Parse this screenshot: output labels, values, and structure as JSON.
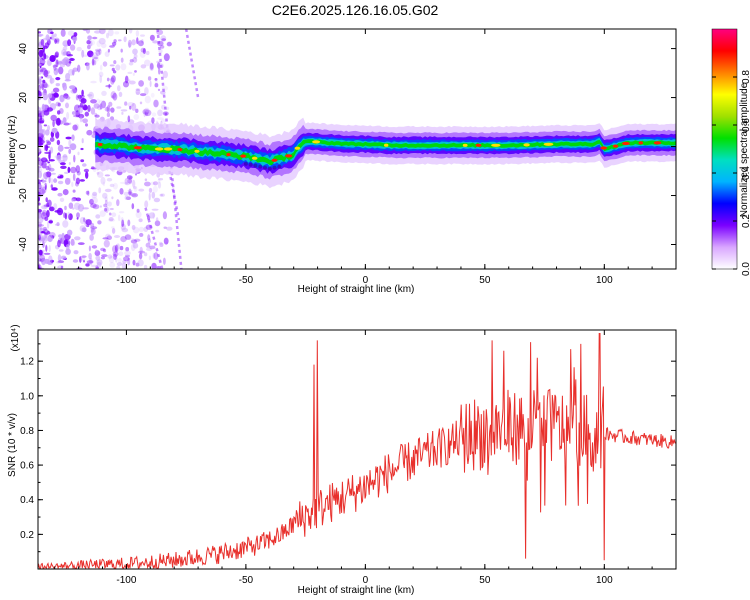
{
  "title": "C2E6.2025.126.16.05.G02",
  "chart_data": [
    {
      "type": "heatmap",
      "xlabel": "Height of straight line (km)",
      "ylabel": "Frequency (Hz)",
      "xlim": [
        -137,
        130
      ],
      "ylim": [
        -50,
        48
      ],
      "xticks": [
        -100,
        -50,
        0,
        50,
        100
      ],
      "yticks": [
        -40,
        -20,
        0,
        20,
        40
      ],
      "xtick_labels": [
        "-100",
        "-50",
        "0",
        "50",
        "100"
      ],
      "ytick_labels": [
        "-40",
        "-20",
        "0",
        "20",
        "40"
      ],
      "colorbar": {
        "label": "Normalized spectral amplitude",
        "range": [
          0,
          1
        ],
        "ticks": [
          0.0,
          0.2,
          0.4,
          0.6,
          0.8
        ],
        "tick_labels": [
          "0.0",
          "0.2",
          "0.4",
          "0.6",
          "0.8"
        ],
        "colors": [
          "#ffffff",
          "#d9a6ff",
          "#7a00ff",
          "#0000ff",
          "#00b4ff",
          "#00e0c0",
          "#00e000",
          "#a0e000",
          "#ffff00",
          "#ff8000",
          "#ff0000",
          "#ff0080"
        ]
      },
      "ridge": {
        "x": [
          -113,
          -100,
          -90,
          -80,
          -70,
          -60,
          -50,
          -45,
          -40,
          -35,
          -30,
          -28,
          -25,
          -22,
          -15,
          -5,
          0,
          10,
          20,
          40,
          60,
          80,
          95,
          98,
          100,
          110,
          130
        ],
        "freq": [
          1,
          0,
          -1,
          -1,
          -2,
          -3,
          -4,
          -5,
          -6,
          -5,
          -3,
          0,
          2,
          2,
          1.5,
          1,
          1,
          0.5,
          0.5,
          0.5,
          0.5,
          1,
          1,
          2,
          -1,
          1.5,
          1.5
        ]
      }
    },
    {
      "type": "line",
      "xlabel": "Height of straight line (km)",
      "ylabel": "SNR (10 * v/v)",
      "scale_label": "(x10⁴)",
      "xlim": [
        -137,
        130
      ],
      "ylim": [
        0,
        1.38
      ],
      "xticks": [
        -100,
        -50,
        0,
        50,
        100
      ],
      "yticks": [
        0.2,
        0.4,
        0.6,
        0.8,
        1.0,
        1.2
      ],
      "xtick_labels": [
        "-100",
        "-50",
        "0",
        "50",
        "100"
      ],
      "ytick_labels": [
        "0.2",
        "0.4",
        "0.6",
        "0.8",
        "1.0",
        "1.2"
      ],
      "color": "#e8302c",
      "trend": {
        "x": [
          -137,
          -120,
          -100,
          -80,
          -60,
          -45,
          -35,
          -28,
          -22,
          -15,
          -5,
          5,
          15,
          25,
          35,
          45,
          60,
          80,
          100,
          110,
          130
        ],
        "y": [
          0.01,
          0.02,
          0.03,
          0.05,
          0.09,
          0.14,
          0.2,
          0.28,
          0.33,
          0.38,
          0.44,
          0.52,
          0.6,
          0.66,
          0.72,
          0.78,
          0.82,
          0.82,
          0.78,
          0.76,
          0.73
        ]
      },
      "spikes": [
        {
          "x": -20,
          "y": 1.32
        },
        {
          "x": -21.5,
          "y": 1.18
        },
        {
          "x": 53,
          "y": 1.32
        },
        {
          "x": 58,
          "y": 1.26
        },
        {
          "x": 67,
          "y": 0.06
        },
        {
          "x": 69,
          "y": 1.31
        },
        {
          "x": 72,
          "y": 1.22
        },
        {
          "x": 86,
          "y": 1.27
        },
        {
          "x": 90,
          "y": 1.3
        },
        {
          "x": 98,
          "y": 1.36
        },
        {
          "x": 100,
          "y": 0.05
        }
      ]
    }
  ]
}
